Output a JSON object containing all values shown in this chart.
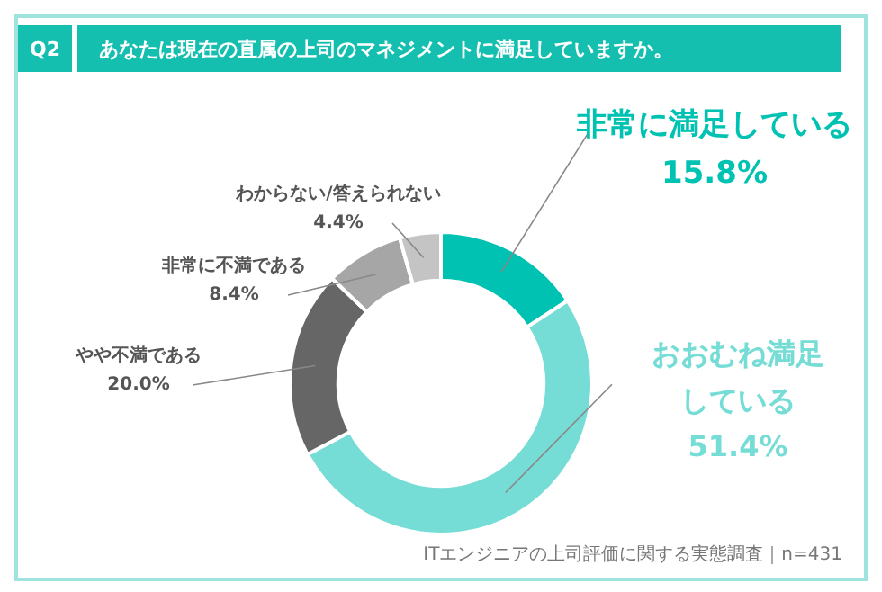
{
  "chart_data": {
    "type": "donut",
    "title": "あなたは現在の直属の上司のマネジメントに満足していますか。",
    "categories": [
      "非常に満足している",
      "おおむね満足している",
      "やや不満である",
      "非常に不満である",
      "わからない/答えられない"
    ],
    "values": [
      15.8,
      51.4,
      20.0,
      8.4,
      4.4
    ],
    "value_labels": [
      "15.8%",
      "51.4%",
      "20.0%",
      "8.4%",
      "4.4%"
    ],
    "colors": [
      "#00c2b2",
      "#76ddd6",
      "#666666",
      "#a6a6a6",
      "#c4c4c4"
    ],
    "legend": false,
    "annotations": [
      "Q2",
      "ITエンジニアの上司評価に関する実態調査｜n=431"
    ]
  }
}
